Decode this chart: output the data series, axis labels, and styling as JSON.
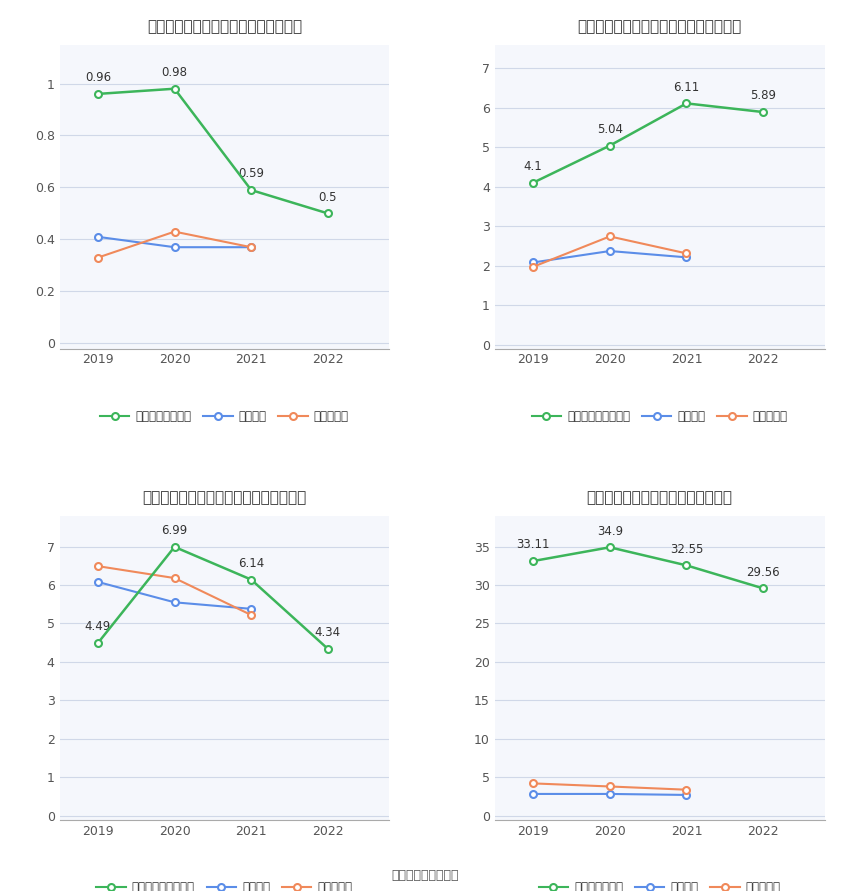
{
  "years": [
    2019,
    2020,
    2021,
    2022
  ],
  "charts": [
    {
      "title": "阳光诺和历年总资产周转率情况（次）",
      "company_label": "公司总资产周转率",
      "company": [
        0.96,
        0.98,
        0.59,
        0.5
      ],
      "industry_avg": [
        0.41,
        0.37,
        0.37,
        null
      ],
      "industry_med": [
        0.33,
        0.43,
        0.37,
        null
      ],
      "yticks": [
        0,
        0.2,
        0.4,
        0.6,
        0.8,
        1
      ],
      "ylim": [
        -0.02,
        1.15
      ]
    },
    {
      "title": "阳光诺和历年固定资产周转率情况（次）",
      "company_label": "公司固定资产周转率",
      "company": [
        4.1,
        5.04,
        6.11,
        5.89
      ],
      "industry_avg": [
        2.08,
        2.37,
        2.21,
        null
      ],
      "industry_med": [
        1.97,
        2.74,
        2.31,
        null
      ],
      "yticks": [
        0,
        1,
        2,
        3,
        4,
        5,
        6,
        7
      ],
      "ylim": [
        -0.1,
        7.6
      ]
    },
    {
      "title": "阳光诺和历年应收账款周转率情况（次）",
      "company_label": "公司应收账款周转率",
      "company": [
        4.49,
        6.99,
        6.14,
        4.34
      ],
      "industry_avg": [
        6.08,
        5.55,
        5.38,
        null
      ],
      "industry_med": [
        6.49,
        6.18,
        5.22,
        null
      ],
      "yticks": [
        0,
        1,
        2,
        3,
        4,
        5,
        6,
        7
      ],
      "ylim": [
        -0.1,
        7.8
      ]
    },
    {
      "title": "阳光诺和历年存货周转率情况（次）",
      "company_label": "公司存货周转率",
      "company": [
        33.11,
        34.9,
        32.55,
        29.56
      ],
      "industry_avg": [
        2.85,
        2.85,
        2.72,
        null
      ],
      "industry_med": [
        4.22,
        3.82,
        3.4,
        null
      ],
      "yticks": [
        0,
        5,
        10,
        15,
        20,
        25,
        30,
        35
      ],
      "ylim": [
        -0.5,
        39
      ]
    }
  ],
  "green_color": "#3cb55a",
  "blue_color": "#5b8de8",
  "orange_color": "#f0895a",
  "bg_color": "#ffffff",
  "grid_color": "#d0d8e8",
  "label_industry_avg": "行业均值",
  "label_industry_med": "行业中位数",
  "source_text": "数据来源：恒生聚源"
}
